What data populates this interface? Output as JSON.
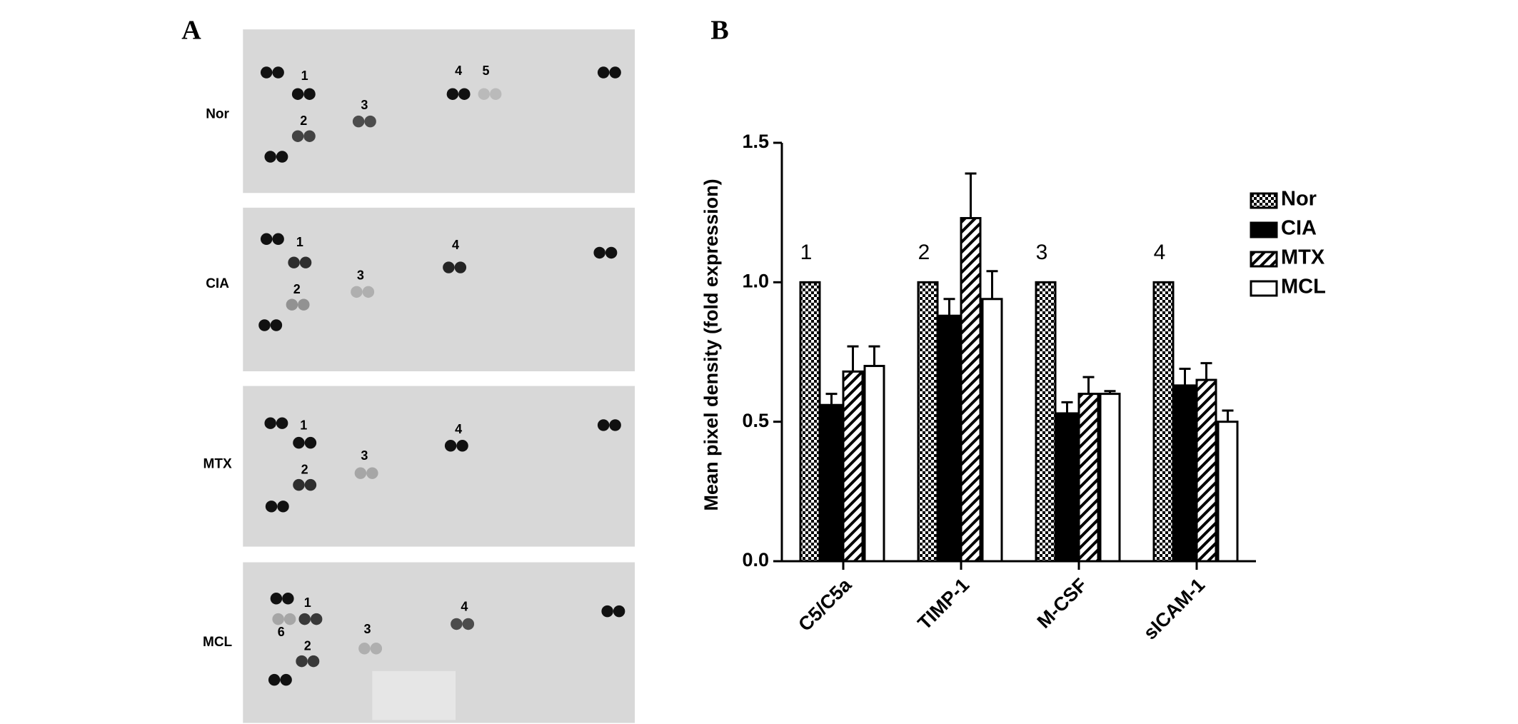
{
  "panel_labels": [
    "A",
    "B"
  ],
  "blots": [
    {
      "name": "Nor",
      "spot_labels": [
        "1",
        "2",
        "3",
        "4",
        "5"
      ]
    },
    {
      "name": "CIA",
      "spot_labels": [
        "1",
        "2",
        "3",
        "4"
      ]
    },
    {
      "name": "MTX",
      "spot_labels": [
        "1",
        "2",
        "3",
        "4"
      ]
    },
    {
      "name": "MCL",
      "spot_labels": [
        "1",
        "6",
        "2",
        "3",
        "4"
      ]
    }
  ],
  "chart_data": {
    "type": "bar",
    "ylabel": "Mean pixel density (fold expression)",
    "categories": [
      "C5/C5a",
      "TIMP-1",
      "M-CSF",
      "sICAM-1"
    ],
    "annotations": [
      "1",
      "2",
      "3",
      "4"
    ],
    "series": [
      {
        "name": "Nor",
        "color": "#000000",
        "pattern": "checker",
        "values": [
          1,
          1,
          1,
          1
        ]
      },
      {
        "name": "CIA",
        "color": "#000000",
        "pattern": "solid",
        "values": [
          0.56,
          0.88,
          0.53,
          0.63
        ],
        "errors": [
          0.04,
          0.06,
          0.04,
          0.06
        ]
      },
      {
        "name": "MTX",
        "color": "#000000",
        "pattern": "hatch",
        "values": [
          0.68,
          1.23,
          0.6,
          0.65
        ],
        "errors": [
          0.09,
          0.16,
          0.06,
          0.06
        ]
      },
      {
        "name": "MCL",
        "color": "#000000",
        "pattern": "open",
        "values": [
          0.7,
          0.94,
          0.6,
          0.5
        ],
        "errors": [
          0.07,
          0.1,
          0.01,
          0.04
        ]
      }
    ],
    "ylim": [
      0,
      1.5
    ],
    "yticks": [
      {
        "value": 0,
        "label": "0.0"
      },
      0.5,
      {
        "value": 1,
        "label": "1.0"
      },
      1.5
    ],
    "legend": "right"
  }
}
